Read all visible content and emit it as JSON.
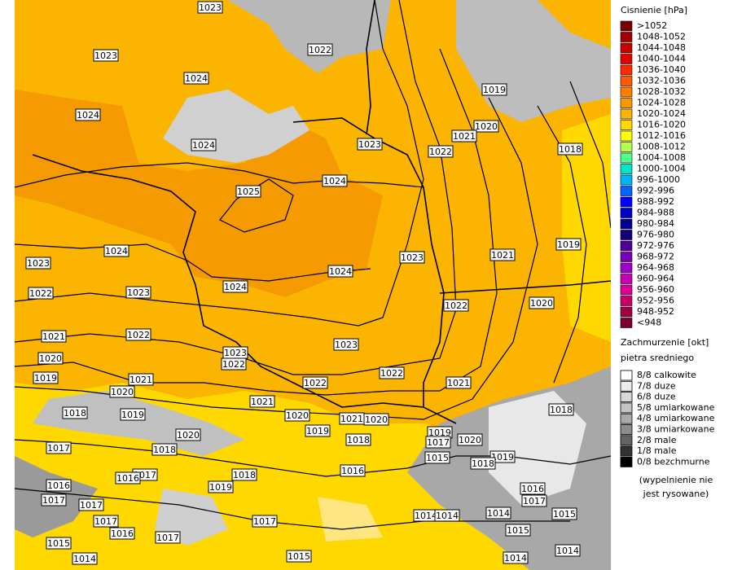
{
  "map": {
    "isobar_labels": [
      "1023",
      "1023",
      "1022",
      "1024",
      "1019",
      "1024",
      "1020",
      "1021",
      "1024",
      "1023",
      "1022",
      "1018",
      "1024",
      "1025",
      "1024",
      "1023",
      "1021",
      "1019",
      "1023",
      "1024",
      "1024",
      "1022",
      "1023",
      "1020",
      "1022",
      "1021",
      "1022",
      "1023",
      "1020",
      "1023",
      "1022",
      "1022",
      "1019",
      "1021",
      "1022",
      "1021",
      "1020",
      "1021",
      "1018",
      "1019",
      "1020",
      "1021",
      "1020",
      "1018",
      "1019",
      "1019",
      "1020",
      "1017",
      "1020",
      "1018",
      "1017",
      "1018",
      "1015",
      "1019",
      "1018",
      "1016",
      "1017",
      "1018",
      "1016",
      "1019",
      "1016",
      "1016",
      "1017",
      "1017",
      "1017",
      "1015",
      "1014",
      "1014",
      "1014",
      "1017",
      "1017",
      "1016",
      "1015",
      "1017",
      "1015",
      "1014",
      "1015",
      "1014",
      "1014"
    ],
    "pressure_legend": {
      "title": "Cisnienie [hPa]",
      "items": [
        {
          "label": ">1052",
          "color": "#7a0000"
        },
        {
          "label": "1048-1052",
          "color": "#a00000"
        },
        {
          "label": "1044-1048",
          "color": "#c80000"
        },
        {
          "label": "1040-1044",
          "color": "#e60000"
        },
        {
          "label": "1036-1040",
          "color": "#ff2a00"
        },
        {
          "label": "1032-1036",
          "color": "#ff5a00"
        },
        {
          "label": "1028-1032",
          "color": "#ff7d00"
        },
        {
          "label": "1024-1028",
          "color": "#f59a00"
        },
        {
          "label": "1020-1024",
          "color": "#fbb400"
        },
        {
          "label": "1016-1020",
          "color": "#ffd800"
        },
        {
          "label": "1012-1016",
          "color": "#ffff00"
        },
        {
          "label": "1008-1012",
          "color": "#b4ff50"
        },
        {
          "label": "1004-1008",
          "color": "#50ff8c"
        },
        {
          "label": "1000-1004",
          "color": "#00e6c8"
        },
        {
          "label": "996-1000",
          "color": "#00b4ff"
        },
        {
          "label": "992-996",
          "color": "#0064ff"
        },
        {
          "label": "988-992",
          "color": "#0000ff"
        },
        {
          "label": "984-988",
          "color": "#0000c8"
        },
        {
          "label": "980-984",
          "color": "#000096"
        },
        {
          "label": "976-980",
          "color": "#140078"
        },
        {
          "label": "972-976",
          "color": "#500096"
        },
        {
          "label": "968-972",
          "color": "#7800b4"
        },
        {
          "label": "964-968",
          "color": "#a000c8"
        },
        {
          "label": "960-964",
          "color": "#c800b4"
        },
        {
          "label": "956-960",
          "color": "#dc0096"
        },
        {
          "label": "952-956",
          "color": "#c80064"
        },
        {
          "label": "948-952",
          "color": "#a00046"
        },
        {
          "label": "<948",
          "color": "#780032"
        }
      ]
    },
    "cloud_legend": {
      "title": "Zachmurzenie [okt]",
      "subtitle": "pietra sredniego",
      "items": [
        {
          "label": "8/8 calkowite",
          "color": "#ffffff"
        },
        {
          "label": "7/8 duze",
          "color": "#ececec"
        },
        {
          "label": "6/8 duze",
          "color": "#d8d8d8"
        },
        {
          "label": "5/8 umiarkowane",
          "color": "#c4c4c4"
        },
        {
          "label": "4/8 umiarkowane",
          "color": "#aaaaaa"
        },
        {
          "label": "3/8 umiarkowane",
          "color": "#8c8c8c"
        },
        {
          "label": "2/8 male",
          "color": "#646464"
        },
        {
          "label": "1/8 male",
          "color": "#333333"
        },
        {
          "label": "0/8 bezchmurne",
          "color": "#000000"
        }
      ],
      "note": [
        "(wypelnienie nie",
        "jest rysowane)"
      ]
    }
  }
}
